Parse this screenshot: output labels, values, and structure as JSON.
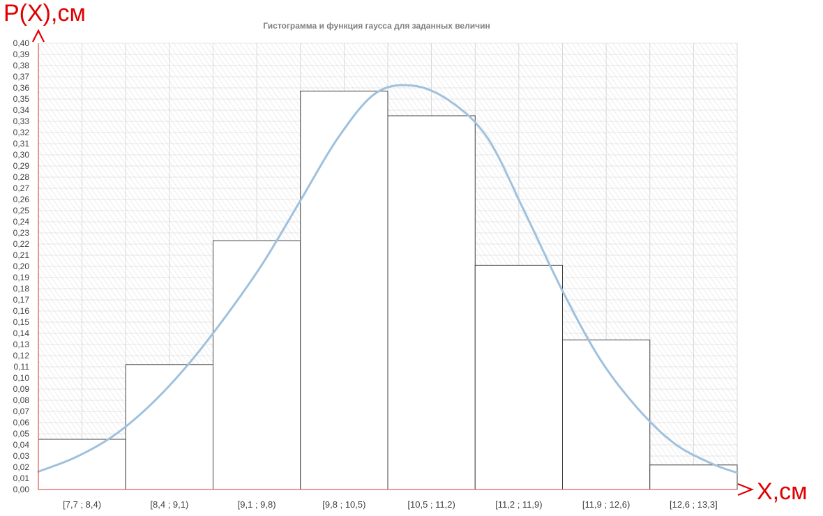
{
  "chart_data": {
    "type": "bar",
    "title": "Гистограмма и функция гаусса для заданных величин",
    "ylabel": "P(X),см",
    "xlabel": "X,см",
    "ylim": [
      0,
      0.4
    ],
    "y_ticks": [
      "0,00",
      "0,01",
      "0,02",
      "0,03",
      "0,04",
      "0,05",
      "0,06",
      "0,07",
      "0,08",
      "0,09",
      "0,10",
      "0,11",
      "0,12",
      "0,13",
      "0,14",
      "0,15",
      "0,16",
      "0,17",
      "0,18",
      "0,19",
      "0,20",
      "0,21",
      "0,22",
      "0,23",
      "0,24",
      "0,25",
      "0,26",
      "0,27",
      "0,28",
      "0,29",
      "0,30",
      "0,31",
      "0,32",
      "0,33",
      "0,34",
      "0,35",
      "0,36",
      "0,37",
      "0,38",
      "0,39",
      "0,40"
    ],
    "categories": [
      "[7,7 ; 8,4)",
      "[8,4 ; 9,1)",
      "[9,1 ; 9,8)",
      "[9,8 ; 10,5)",
      "[10,5 ; 11,2)",
      "[11,2 ; 11,9)",
      "[11,9 ; 12,6)",
      "[12,6 ; 13,3]"
    ],
    "bin_edges": [
      7.7,
      8.4,
      9.1,
      9.8,
      10.5,
      11.2,
      11.9,
      12.6,
      13.3
    ],
    "values": [
      0.045,
      0.112,
      0.223,
      0.357,
      0.335,
      0.201,
      0.134,
      0.022
    ],
    "gauss_curve": {
      "x": [
        7.7,
        8.0,
        8.3,
        8.6,
        8.9,
        9.2,
        9.5,
        9.8,
        10.1,
        10.4,
        10.7,
        11.0,
        11.3,
        11.6,
        11.9,
        12.2,
        12.5,
        12.8,
        13.1,
        13.3
      ],
      "y": [
        0.016,
        0.029,
        0.048,
        0.076,
        0.112,
        0.155,
        0.203,
        0.259,
        0.315,
        0.355,
        0.362,
        0.348,
        0.315,
        0.248,
        0.178,
        0.117,
        0.073,
        0.041,
        0.023,
        0.015
      ]
    },
    "colors": {
      "bars_stroke": "#404040",
      "bars_fill": "#ffffff",
      "curve": "#9fc1dd",
      "axis": "#e06060",
      "grid": "#d0d0d0",
      "annotation": "#e00000"
    },
    "grid": true,
    "legend": "none"
  }
}
